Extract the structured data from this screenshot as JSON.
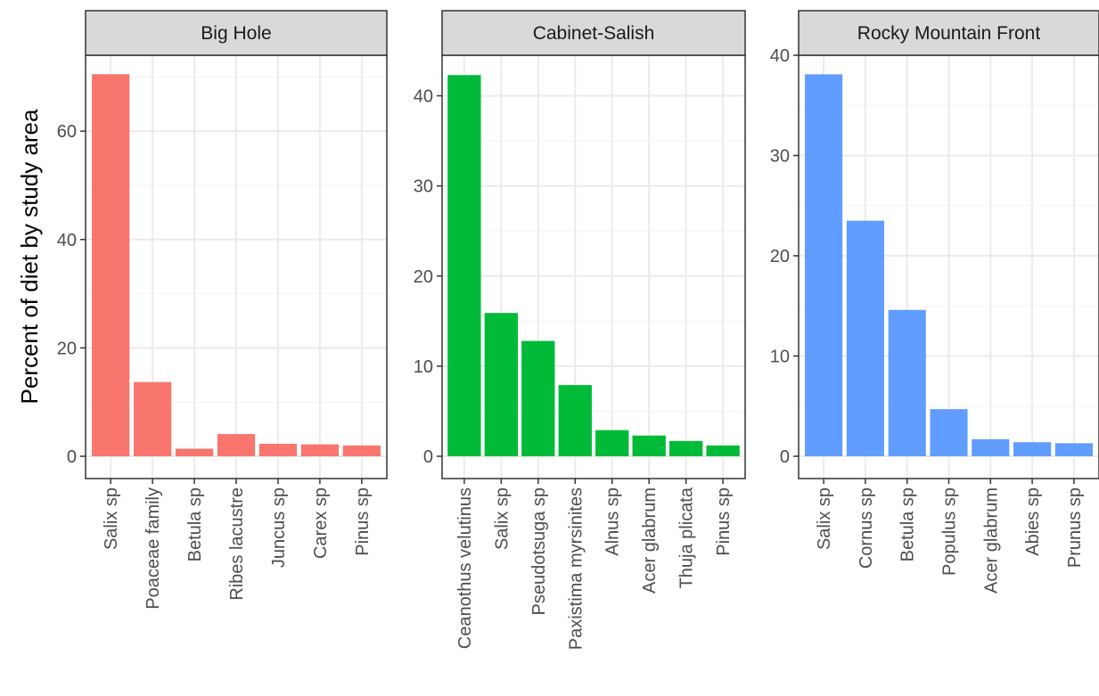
{
  "chart_data": {
    "type": "bar",
    "ylabel": "Percent of diet by study area",
    "xlabel": "",
    "grid": true,
    "legend": "none",
    "facets": [
      {
        "title": "Big Hole",
        "color": "#F8766D",
        "ylim": [
          0,
          74
        ],
        "yticks": [
          0,
          20,
          40,
          60
        ],
        "categories": [
          "Salix sp",
          "Poaceae family",
          "Betula sp",
          "Ribes lacustre",
          "Juncus sp",
          "Carex sp",
          "Pinus sp"
        ],
        "values": [
          70.5,
          13.7,
          1.4,
          4.1,
          2.3,
          2.2,
          2.0
        ]
      },
      {
        "title": "Cabinet-Salish",
        "color": "#00BA38",
        "ylim": [
          0,
          44.5
        ],
        "yticks": [
          0,
          10,
          20,
          30,
          40
        ],
        "categories": [
          "Ceanothus velutinus",
          "Salix sp",
          "Pseudotsuga sp",
          "Paxistima myrsinites",
          "Alnus sp",
          "Acer glabrum",
          "Thuja plicata",
          "Pinus sp"
        ],
        "values": [
          42.3,
          15.9,
          12.8,
          7.9,
          2.9,
          2.3,
          1.7,
          1.2
        ]
      },
      {
        "title": "Rocky Mountain Front",
        "color": "#619CFF",
        "ylim": [
          0,
          40
        ],
        "yticks": [
          0,
          10,
          20,
          30,
          40
        ],
        "categories": [
          "Salix sp",
          "Cornus sp",
          "Betula sp",
          "Populus sp",
          "Acer glabrum",
          "Abies sp",
          "Prunus sp"
        ],
        "values": [
          38.1,
          23.5,
          14.6,
          4.7,
          1.7,
          1.4,
          1.3
        ]
      }
    ]
  }
}
